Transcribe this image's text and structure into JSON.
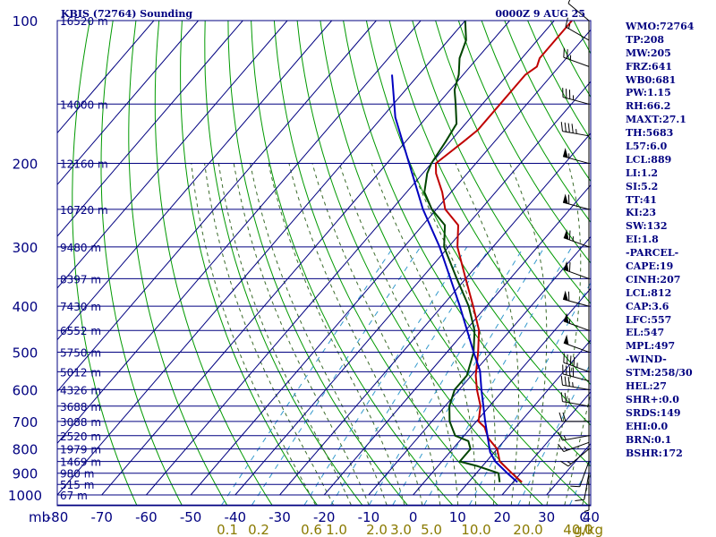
{
  "header": {
    "station": "KBIS (72764) Sounding",
    "time": "0000Z  9 AUG 25"
  },
  "indices": [
    "WMO:72764",
    "TP:208",
    "MW:205",
    "FRZ:641",
    "WB0:681",
    "PW:1.15",
    "RH:66.2",
    "MAXT:27.1",
    "TH:5683",
    "L57:6.0",
    "LCL:889",
    "LI:1.2",
    "SI:5.2",
    "TT:41",
    "KI:23",
    "SW:132",
    "EI:1.8",
    "-PARCEL-",
    "CAPE:19",
    "CINH:207",
    "LCL:812",
    "CAP:3.6",
    "LFC:557",
    "EL:547",
    "MPL:497",
    "-WIND-",
    "STM:258/30",
    "HEL:27",
    "SHR+:0.0",
    "SRDS:149",
    "EHI:0.0",
    "BRN:0.1",
    "BSHR:172"
  ],
  "chart_data": {
    "type": "line",
    "subtype": "skew-T log-P",
    "y_scale": "log",
    "ylabel": "mb",
    "xlabel": "C",
    "mixing_ratio_unit": "g/kg",
    "pressure_ticks": [
      100,
      200,
      300,
      400,
      500,
      600,
      700,
      800,
      900,
      1000
    ],
    "height_labels": [
      {
        "p": 100,
        "label": "16520 m"
      },
      {
        "p": 150,
        "label": "14000 m"
      },
      {
        "p": 200,
        "label": "12160 m"
      },
      {
        "p": 250,
        "label": "10720 m"
      },
      {
        "p": 300,
        "label": "9480 m"
      },
      {
        "p": 350,
        "label": "8397 m"
      },
      {
        "p": 400,
        "label": "7430 m"
      },
      {
        "p": 450,
        "label": "6552 m"
      },
      {
        "p": 500,
        "label": "5750 m"
      },
      {
        "p": 550,
        "label": "5012 m"
      },
      {
        "p": 600,
        "label": "4326 m"
      },
      {
        "p": 650,
        "label": "3688 m"
      },
      {
        "p": 700,
        "label": "3088 m"
      },
      {
        "p": 750,
        "label": "2520 m"
      },
      {
        "p": 800,
        "label": "1979 m"
      },
      {
        "p": 850,
        "label": "1469 m"
      },
      {
        "p": 900,
        "label": "980 m"
      },
      {
        "p": 950,
        "label": "515 m"
      },
      {
        "p": 1000,
        "label": "67 m"
      }
    ],
    "temperature_ticks": [
      "-80",
      "-70",
      "-60",
      "-50",
      "-40",
      "-30",
      "-20",
      "-10",
      "0",
      "10",
      "20",
      "30",
      "40"
    ],
    "mixing_ratio_ticks": [
      "0.1",
      "0.2",
      "0.6",
      "1.0",
      "2.0",
      "3.0",
      "5.0",
      "10.0",
      "20.0",
      "40.0"
    ],
    "series": [
      {
        "name": "Temperature",
        "color": "#c00000",
        "points": [
          [
            940,
            22
          ],
          [
            900,
            18
          ],
          [
            850,
            13
          ],
          [
            800,
            10
          ],
          [
            760,
            6
          ],
          [
            720,
            3
          ],
          [
            700,
            0.5
          ],
          [
            650,
            -2
          ],
          [
            600,
            -6
          ],
          [
            560,
            -9
          ],
          [
            500,
            -13
          ],
          [
            450,
            -17
          ],
          [
            400,
            -23
          ],
          [
            350,
            -30
          ],
          [
            300,
            -38
          ],
          [
            270,
            -42
          ],
          [
            250,
            -48
          ],
          [
            230,
            -52
          ],
          [
            210,
            -57
          ],
          [
            200,
            -59
          ],
          [
            180,
            -57
          ],
          [
            170,
            -56
          ],
          [
            160,
            -56
          ],
          [
            150,
            -56
          ],
          [
            140,
            -56
          ],
          [
            130,
            -56
          ],
          [
            125,
            -55
          ],
          [
            120,
            -56
          ],
          [
            100,
            -56
          ]
        ]
      },
      {
        "name": "Dewpoint",
        "color": "#004400",
        "points": [
          [
            940,
            17
          ],
          [
            900,
            15
          ],
          [
            870,
            9
          ],
          [
            850,
            4
          ],
          [
            800,
            4
          ],
          [
            770,
            2
          ],
          [
            750,
            -2
          ],
          [
            700,
            -6
          ],
          [
            650,
            -9
          ],
          [
            600,
            -11
          ],
          [
            560,
            -11
          ],
          [
            500,
            -14
          ],
          [
            450,
            -18
          ],
          [
            400,
            -24
          ],
          [
            350,
            -32
          ],
          [
            300,
            -41
          ],
          [
            270,
            -45
          ],
          [
            250,
            -51
          ],
          [
            230,
            -56
          ],
          [
            210,
            -59
          ],
          [
            200,
            -60
          ],
          [
            180,
            -61
          ],
          [
            165,
            -62
          ],
          [
            150,
            -66
          ],
          [
            140,
            -69
          ],
          [
            130,
            -71
          ],
          [
            120,
            -74
          ],
          [
            110,
            -76
          ],
          [
            100,
            -80
          ]
        ]
      },
      {
        "name": "Parcel",
        "color": "#0000c0",
        "points": [
          [
            940,
            21
          ],
          [
            900,
            17
          ],
          [
            850,
            12
          ],
          [
            812,
            9
          ],
          [
            700,
            2
          ],
          [
            600,
            -5
          ],
          [
            547,
            -9
          ],
          [
            500,
            -14
          ],
          [
            400,
            -26
          ],
          [
            300,
            -42
          ],
          [
            250,
            -53
          ],
          [
            200,
            -65
          ],
          [
            160,
            -77
          ],
          [
            130,
            -86
          ]
        ]
      }
    ],
    "wind_barbs": [
      {
        "p": 945,
        "dir": 180,
        "spd": 5
      },
      {
        "p": 900,
        "dir": 190,
        "spd": 10
      },
      {
        "p": 850,
        "dir": 200,
        "spd": 10
      },
      {
        "p": 800,
        "dir": 230,
        "spd": 15
      },
      {
        "p": 775,
        "dir": 250,
        "spd": 15
      },
      {
        "p": 750,
        "dir": 260,
        "spd": 15
      },
      {
        "p": 700,
        "dir": 270,
        "spd": 20
      },
      {
        "p": 650,
        "dir": 280,
        "spd": 25
      },
      {
        "p": 600,
        "dir": 280,
        "spd": 35
      },
      {
        "p": 575,
        "dir": 285,
        "spd": 40
      },
      {
        "p": 550,
        "dir": 290,
        "spd": 45
      },
      {
        "p": 500,
        "dir": 290,
        "spd": 50
      },
      {
        "p": 450,
        "dir": 290,
        "spd": 55
      },
      {
        "p": 400,
        "dir": 285,
        "spd": 60
      },
      {
        "p": 350,
        "dir": 290,
        "spd": 60
      },
      {
        "p": 300,
        "dir": 290,
        "spd": 65
      },
      {
        "p": 250,
        "dir": 285,
        "spd": 60
      },
      {
        "p": 200,
        "dir": 285,
        "spd": 55
      },
      {
        "p": 175,
        "dir": 280,
        "spd": 45
      },
      {
        "p": 150,
        "dir": 285,
        "spd": 35
      },
      {
        "p": 125,
        "dir": 290,
        "spd": 25
      },
      {
        "p": 110,
        "dir": 300,
        "spd": 15
      },
      {
        "p": 100,
        "dir": 310,
        "spd": 10
      }
    ],
    "colors": {
      "frame": "#000080",
      "isotherm": "#000080",
      "dry_adiabat": "#009900",
      "moist_adiabat": "#3a6b2a",
      "mixing_ratio": "#3399cc"
    }
  }
}
